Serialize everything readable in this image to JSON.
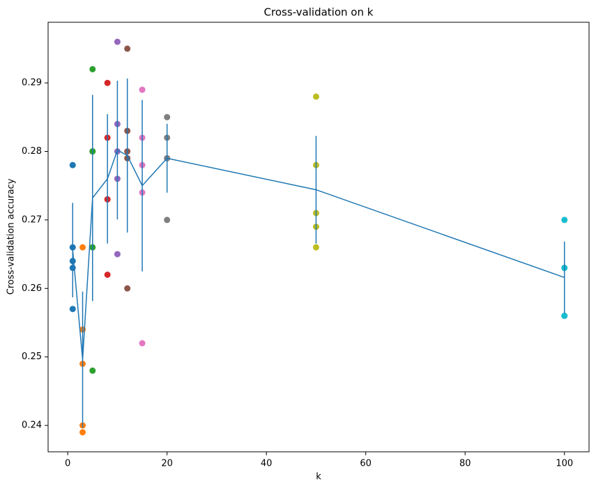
{
  "chart_data": {
    "type": "scatter",
    "title": "Cross-validation on k",
    "x_label": "k",
    "y_label": "Cross-validation accuracy",
    "xlim": [
      -3.95,
      104.95
    ],
    "ylim": [
      0.23615,
      0.29885
    ],
    "xticks": [
      0,
      20,
      40,
      60,
      80,
      100
    ],
    "yticks": [
      0.24,
      0.25,
      0.26,
      0.27,
      0.28,
      0.29
    ],
    "series": [
      {
        "color": "#1f77b4",
        "x": [
          1,
          1,
          1,
          1,
          1
        ],
        "values": [
          0.278,
          0.266,
          0.264,
          0.263,
          0.257
        ]
      },
      {
        "color": "#ff7f0e",
        "x": [
          3,
          3,
          3,
          3,
          3
        ],
        "values": [
          0.266,
          0.254,
          0.249,
          0.24,
          0.239
        ]
      },
      {
        "color": "#2ca02c",
        "x": [
          5,
          5,
          5,
          5,
          5
        ],
        "values": [
          0.292,
          0.28,
          0.28,
          0.266,
          0.248
        ]
      },
      {
        "color": "#d62728",
        "x": [
          8,
          8,
          8,
          8,
          8
        ],
        "values": [
          0.29,
          0.282,
          0.273,
          0.273,
          0.262
        ]
      },
      {
        "color": "#9467bd",
        "x": [
          10,
          10,
          10,
          10,
          10
        ],
        "values": [
          0.296,
          0.284,
          0.28,
          0.276,
          0.265
        ]
      },
      {
        "color": "#8c564b",
        "x": [
          12,
          12,
          12,
          12,
          12
        ],
        "values": [
          0.295,
          0.283,
          0.28,
          0.279,
          0.26
        ]
      },
      {
        "color": "#e377c2",
        "x": [
          15,
          15,
          15,
          15,
          15
        ],
        "values": [
          0.289,
          0.282,
          0.278,
          0.274,
          0.252
        ]
      },
      {
        "color": "#7f7f7f",
        "x": [
          20,
          20,
          20,
          20,
          20
        ],
        "values": [
          0.285,
          0.282,
          0.279,
          0.279,
          0.27
        ]
      },
      {
        "color": "#bcbd22",
        "x": [
          50,
          50,
          50,
          50,
          50
        ],
        "values": [
          0.288,
          0.278,
          0.271,
          0.269,
          0.266
        ]
      },
      {
        "color": "#17becf",
        "x": [
          100,
          100,
          100,
          100,
          100
        ],
        "values": [
          0.27,
          0.263,
          0.263,
          0.256,
          0.256
        ]
      }
    ],
    "mean_line": {
      "color": "#1f77b4",
      "x": [
        1,
        3,
        5,
        8,
        10,
        12,
        15,
        20,
        50,
        100
      ],
      "values": [
        0.2656,
        0.2496,
        0.2732,
        0.276,
        0.2802,
        0.2794,
        0.275,
        0.279,
        0.2744,
        0.2616
      ],
      "errors": [
        0.00689,
        0.00993,
        0.01505,
        0.00944,
        0.01013,
        0.01125,
        0.01252,
        0.00502,
        0.00786,
        0.00524
      ]
    }
  }
}
